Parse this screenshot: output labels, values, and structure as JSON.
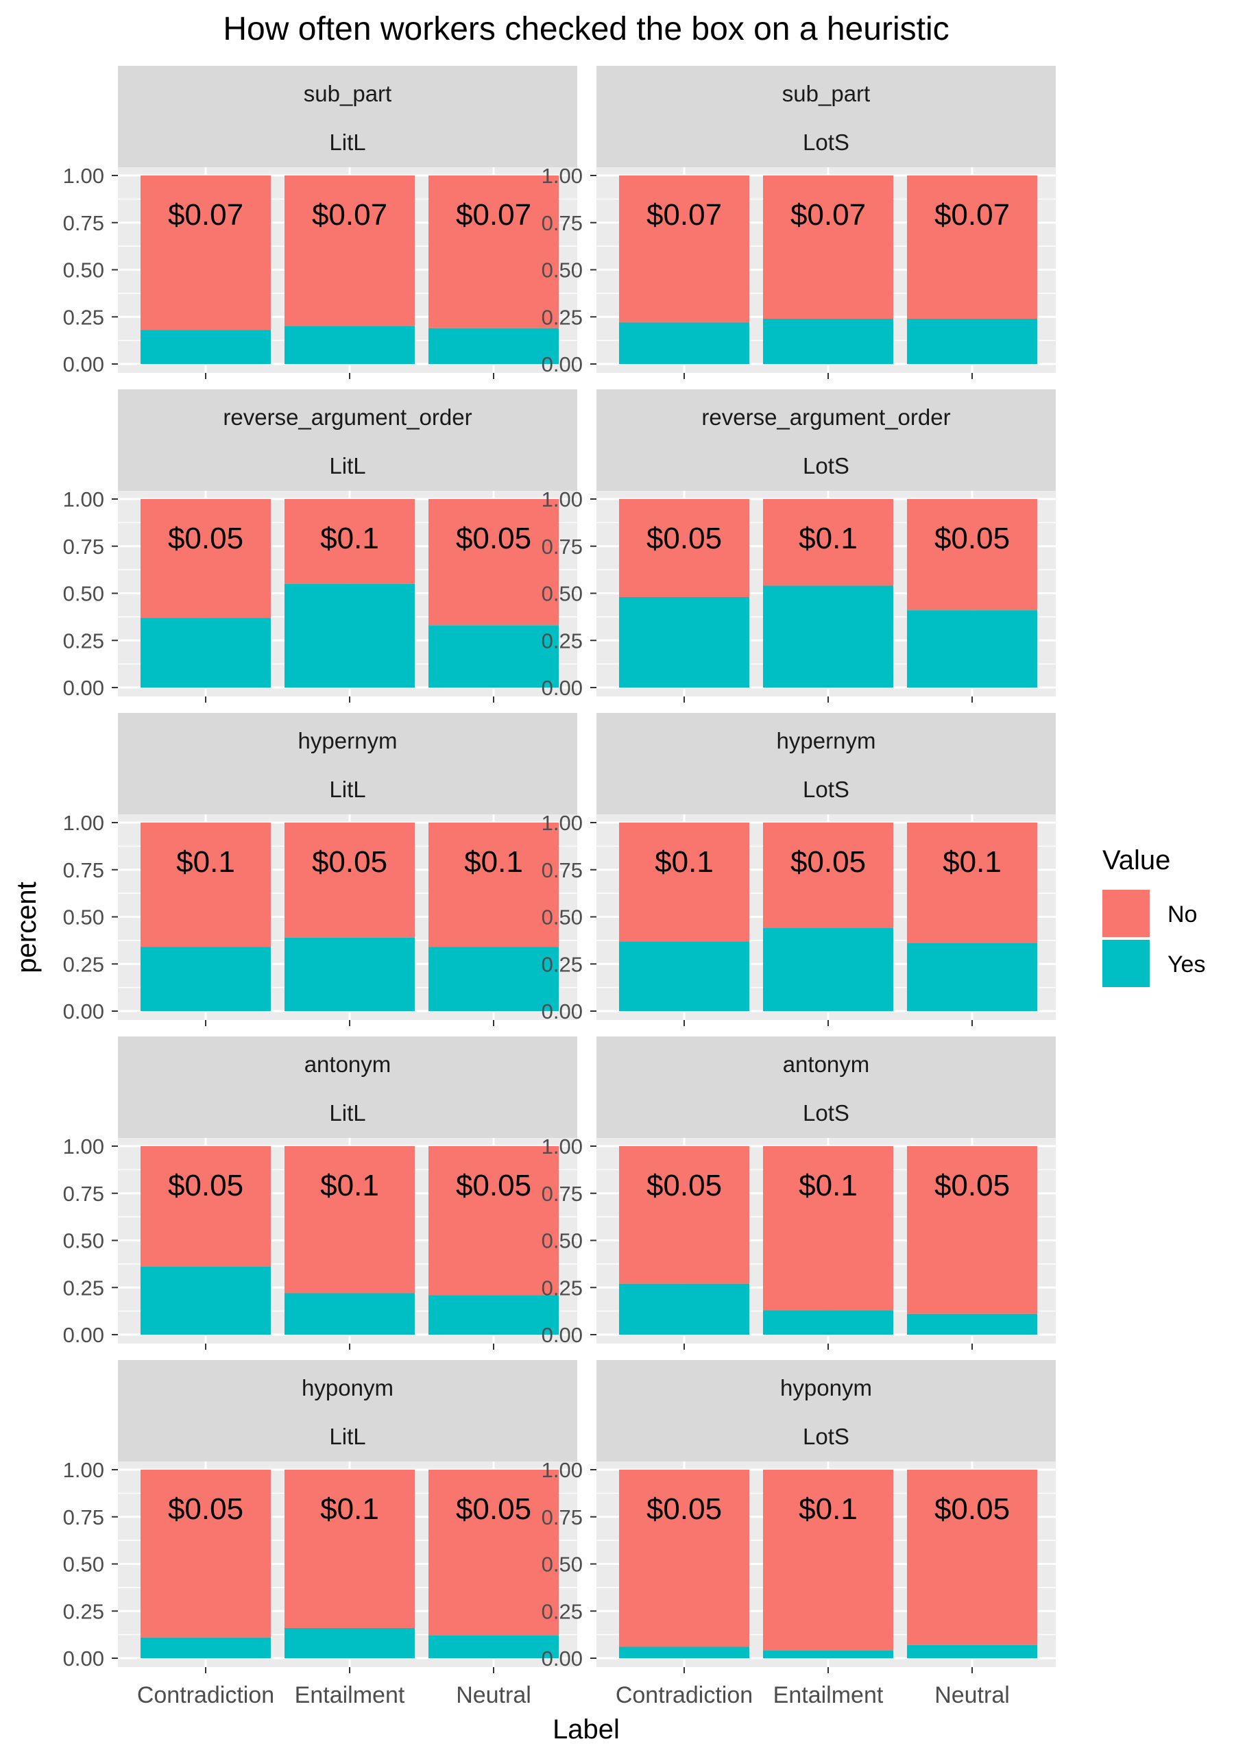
{
  "chart_data": {
    "type": "bar",
    "stacked": true,
    "title": "How often workers checked the box on a heuristic",
    "xlabel": "Label",
    "ylabel": "percent",
    "ylim": [
      0,
      1
    ],
    "yticks": [
      "0.00",
      "0.25",
      "0.50",
      "0.75",
      "1.00"
    ],
    "categories": [
      "Contradiction",
      "Entailment",
      "Neutral"
    ],
    "legend": {
      "title": "Value",
      "placement": "right",
      "entries": [
        {
          "name": "No",
          "color": "#F8766D"
        },
        {
          "name": "Yes",
          "color": "#00BFC4"
        }
      ]
    },
    "grid": true,
    "facets": [
      {
        "heuristic": "sub_part",
        "group": "LitL",
        "yes": [
          0.18,
          0.2,
          0.19
        ],
        "labels": [
          "$0.07",
          "$0.07",
          "$0.07"
        ]
      },
      {
        "heuristic": "sub_part",
        "group": "LotS",
        "yes": [
          0.22,
          0.24,
          0.24
        ],
        "labels": [
          "$0.07",
          "$0.07",
          "$0.07"
        ]
      },
      {
        "heuristic": "reverse_argument_order",
        "group": "LitL",
        "yes": [
          0.37,
          0.55,
          0.33
        ],
        "labels": [
          "$0.05",
          "$0.1",
          "$0.05"
        ]
      },
      {
        "heuristic": "reverse_argument_order",
        "group": "LotS",
        "yes": [
          0.48,
          0.54,
          0.41
        ],
        "labels": [
          "$0.05",
          "$0.1",
          "$0.05"
        ]
      },
      {
        "heuristic": "hypernym",
        "group": "LitL",
        "yes": [
          0.34,
          0.39,
          0.34
        ],
        "labels": [
          "$0.1",
          "$0.05",
          "$0.1"
        ]
      },
      {
        "heuristic": "hypernym",
        "group": "LotS",
        "yes": [
          0.37,
          0.44,
          0.36
        ],
        "labels": [
          "$0.1",
          "$0.05",
          "$0.1"
        ]
      },
      {
        "heuristic": "antonym",
        "group": "LitL",
        "yes": [
          0.36,
          0.22,
          0.21
        ],
        "labels": [
          "$0.05",
          "$0.1",
          "$0.05"
        ]
      },
      {
        "heuristic": "antonym",
        "group": "LotS",
        "yes": [
          0.27,
          0.13,
          0.11
        ],
        "labels": [
          "$0.05",
          "$0.1",
          "$0.05"
        ]
      },
      {
        "heuristic": "hyponym",
        "group": "LitL",
        "yes": [
          0.11,
          0.16,
          0.12
        ],
        "labels": [
          "$0.05",
          "$0.1",
          "$0.05"
        ]
      },
      {
        "heuristic": "hyponym",
        "group": "LotS",
        "yes": [
          0.06,
          0.04,
          0.07
        ],
        "labels": [
          "$0.05",
          "$0.1",
          "$0.05"
        ]
      }
    ]
  }
}
